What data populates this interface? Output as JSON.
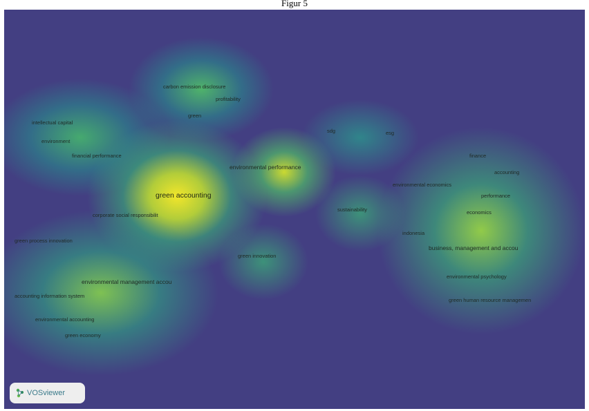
{
  "caption": "Figur 5",
  "logo": {
    "text": "VOSviewer",
    "icon": "vosviewer-logo-icon"
  },
  "colors": {
    "background": "#433f82",
    "density_low": "#2a8f8a",
    "density_mid": "#4fbf6f",
    "density_high": "#f2e62a"
  },
  "keywords": [
    {
      "id": "kw-carbon-emission-disclosure",
      "label": "carbon emission disclosure"
    },
    {
      "id": "kw-profitability",
      "label": "profitability"
    },
    {
      "id": "kw-green",
      "label": "green"
    },
    {
      "id": "kw-intellectual-capital",
      "label": "intellectual capital"
    },
    {
      "id": "kw-environment",
      "label": "environment"
    },
    {
      "id": "kw-financial-performance",
      "label": "financial performance"
    },
    {
      "id": "kw-environmental-performance",
      "label": "environmental performance"
    },
    {
      "id": "kw-green-accounting",
      "label": "green accounting"
    },
    {
      "id": "kw-corporate-social-responsibility",
      "label": "corporate social responsibilit"
    },
    {
      "id": "kw-green-process-innovation",
      "label": "green process innovation"
    },
    {
      "id": "kw-green-innovation",
      "label": "green innovation"
    },
    {
      "id": "kw-environmental-management-accounting",
      "label": "environmental management accou"
    },
    {
      "id": "kw-accounting-information-system",
      "label": "accounting information system"
    },
    {
      "id": "kw-environmental-accounting",
      "label": "environmental accounting"
    },
    {
      "id": "kw-green-economy",
      "label": "green economy"
    },
    {
      "id": "kw-sdg",
      "label": "sdg"
    },
    {
      "id": "kw-esg",
      "label": "esg"
    },
    {
      "id": "kw-sustainability",
      "label": "sustainability"
    },
    {
      "id": "kw-finance",
      "label": "finance"
    },
    {
      "id": "kw-accounting",
      "label": "accounting"
    },
    {
      "id": "kw-environmental-economics",
      "label": "environmental economics"
    },
    {
      "id": "kw-performance",
      "label": "performance"
    },
    {
      "id": "kw-economics",
      "label": "economics"
    },
    {
      "id": "kw-indonesia",
      "label": "indonesia"
    },
    {
      "id": "kw-business-management-accounting",
      "label": "business, management and accou"
    },
    {
      "id": "kw-environmental-psychology",
      "label": "environmental psychology"
    },
    {
      "id": "kw-green-human-resource-management",
      "label": "green human resource managemen"
    }
  ]
}
